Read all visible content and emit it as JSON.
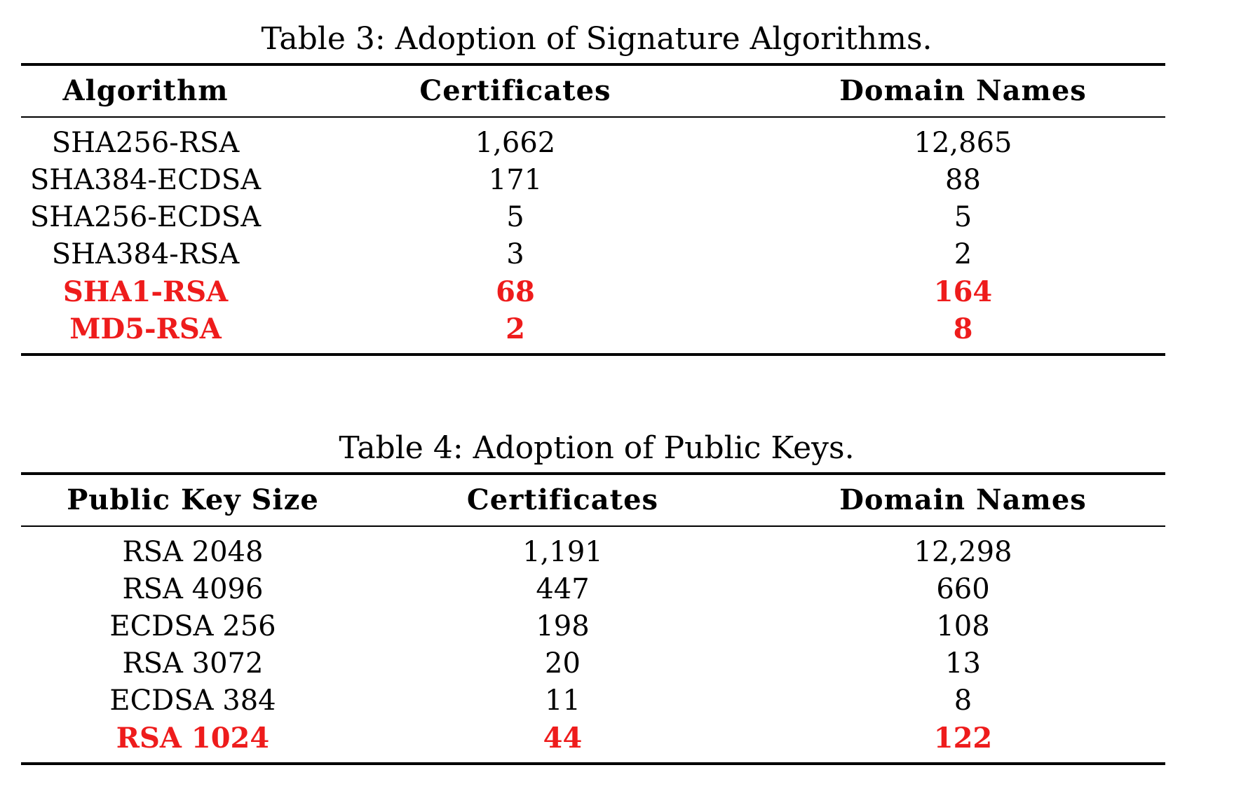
{
  "table3": {
    "caption": "Table 3: Adoption of Signature Algorithms.",
    "headers": [
      "Algorithm",
      "Certificates",
      "Domain Names"
    ],
    "rows": [
      {
        "cells": [
          "SHA256-RSA",
          "1,662",
          "12,865"
        ],
        "highlight": false
      },
      {
        "cells": [
          "SHA384-ECDSA",
          "171",
          "88"
        ],
        "highlight": false
      },
      {
        "cells": [
          "SHA256-ECDSA",
          "5",
          "5"
        ],
        "highlight": false
      },
      {
        "cells": [
          "SHA384-RSA",
          "3",
          "2"
        ],
        "highlight": false
      },
      {
        "cells": [
          "SHA1-RSA",
          "68",
          "164"
        ],
        "highlight": true
      },
      {
        "cells": [
          "MD5-RSA",
          "2",
          "8"
        ],
        "highlight": true
      }
    ]
  },
  "table4": {
    "caption": "Table 4: Adoption of Public Keys.",
    "headers": [
      "Public Key Size",
      "Certificates",
      "Domain Names"
    ],
    "rows": [
      {
        "cells": [
          "RSA 2048",
          "1,191",
          "12,298"
        ],
        "highlight": false
      },
      {
        "cells": [
          "RSA 4096",
          "447",
          "660"
        ],
        "highlight": false
      },
      {
        "cells": [
          "ECDSA 256",
          "198",
          "108"
        ],
        "highlight": false
      },
      {
        "cells": [
          "RSA 3072",
          "20",
          "13"
        ],
        "highlight": false
      },
      {
        "cells": [
          "ECDSA 384",
          "11",
          "8"
        ],
        "highlight": false
      },
      {
        "cells": [
          "RSA 1024",
          "44",
          "122"
        ],
        "highlight": true
      }
    ]
  },
  "colors": {
    "highlight": "#ee1c1c",
    "text": "#000000"
  }
}
